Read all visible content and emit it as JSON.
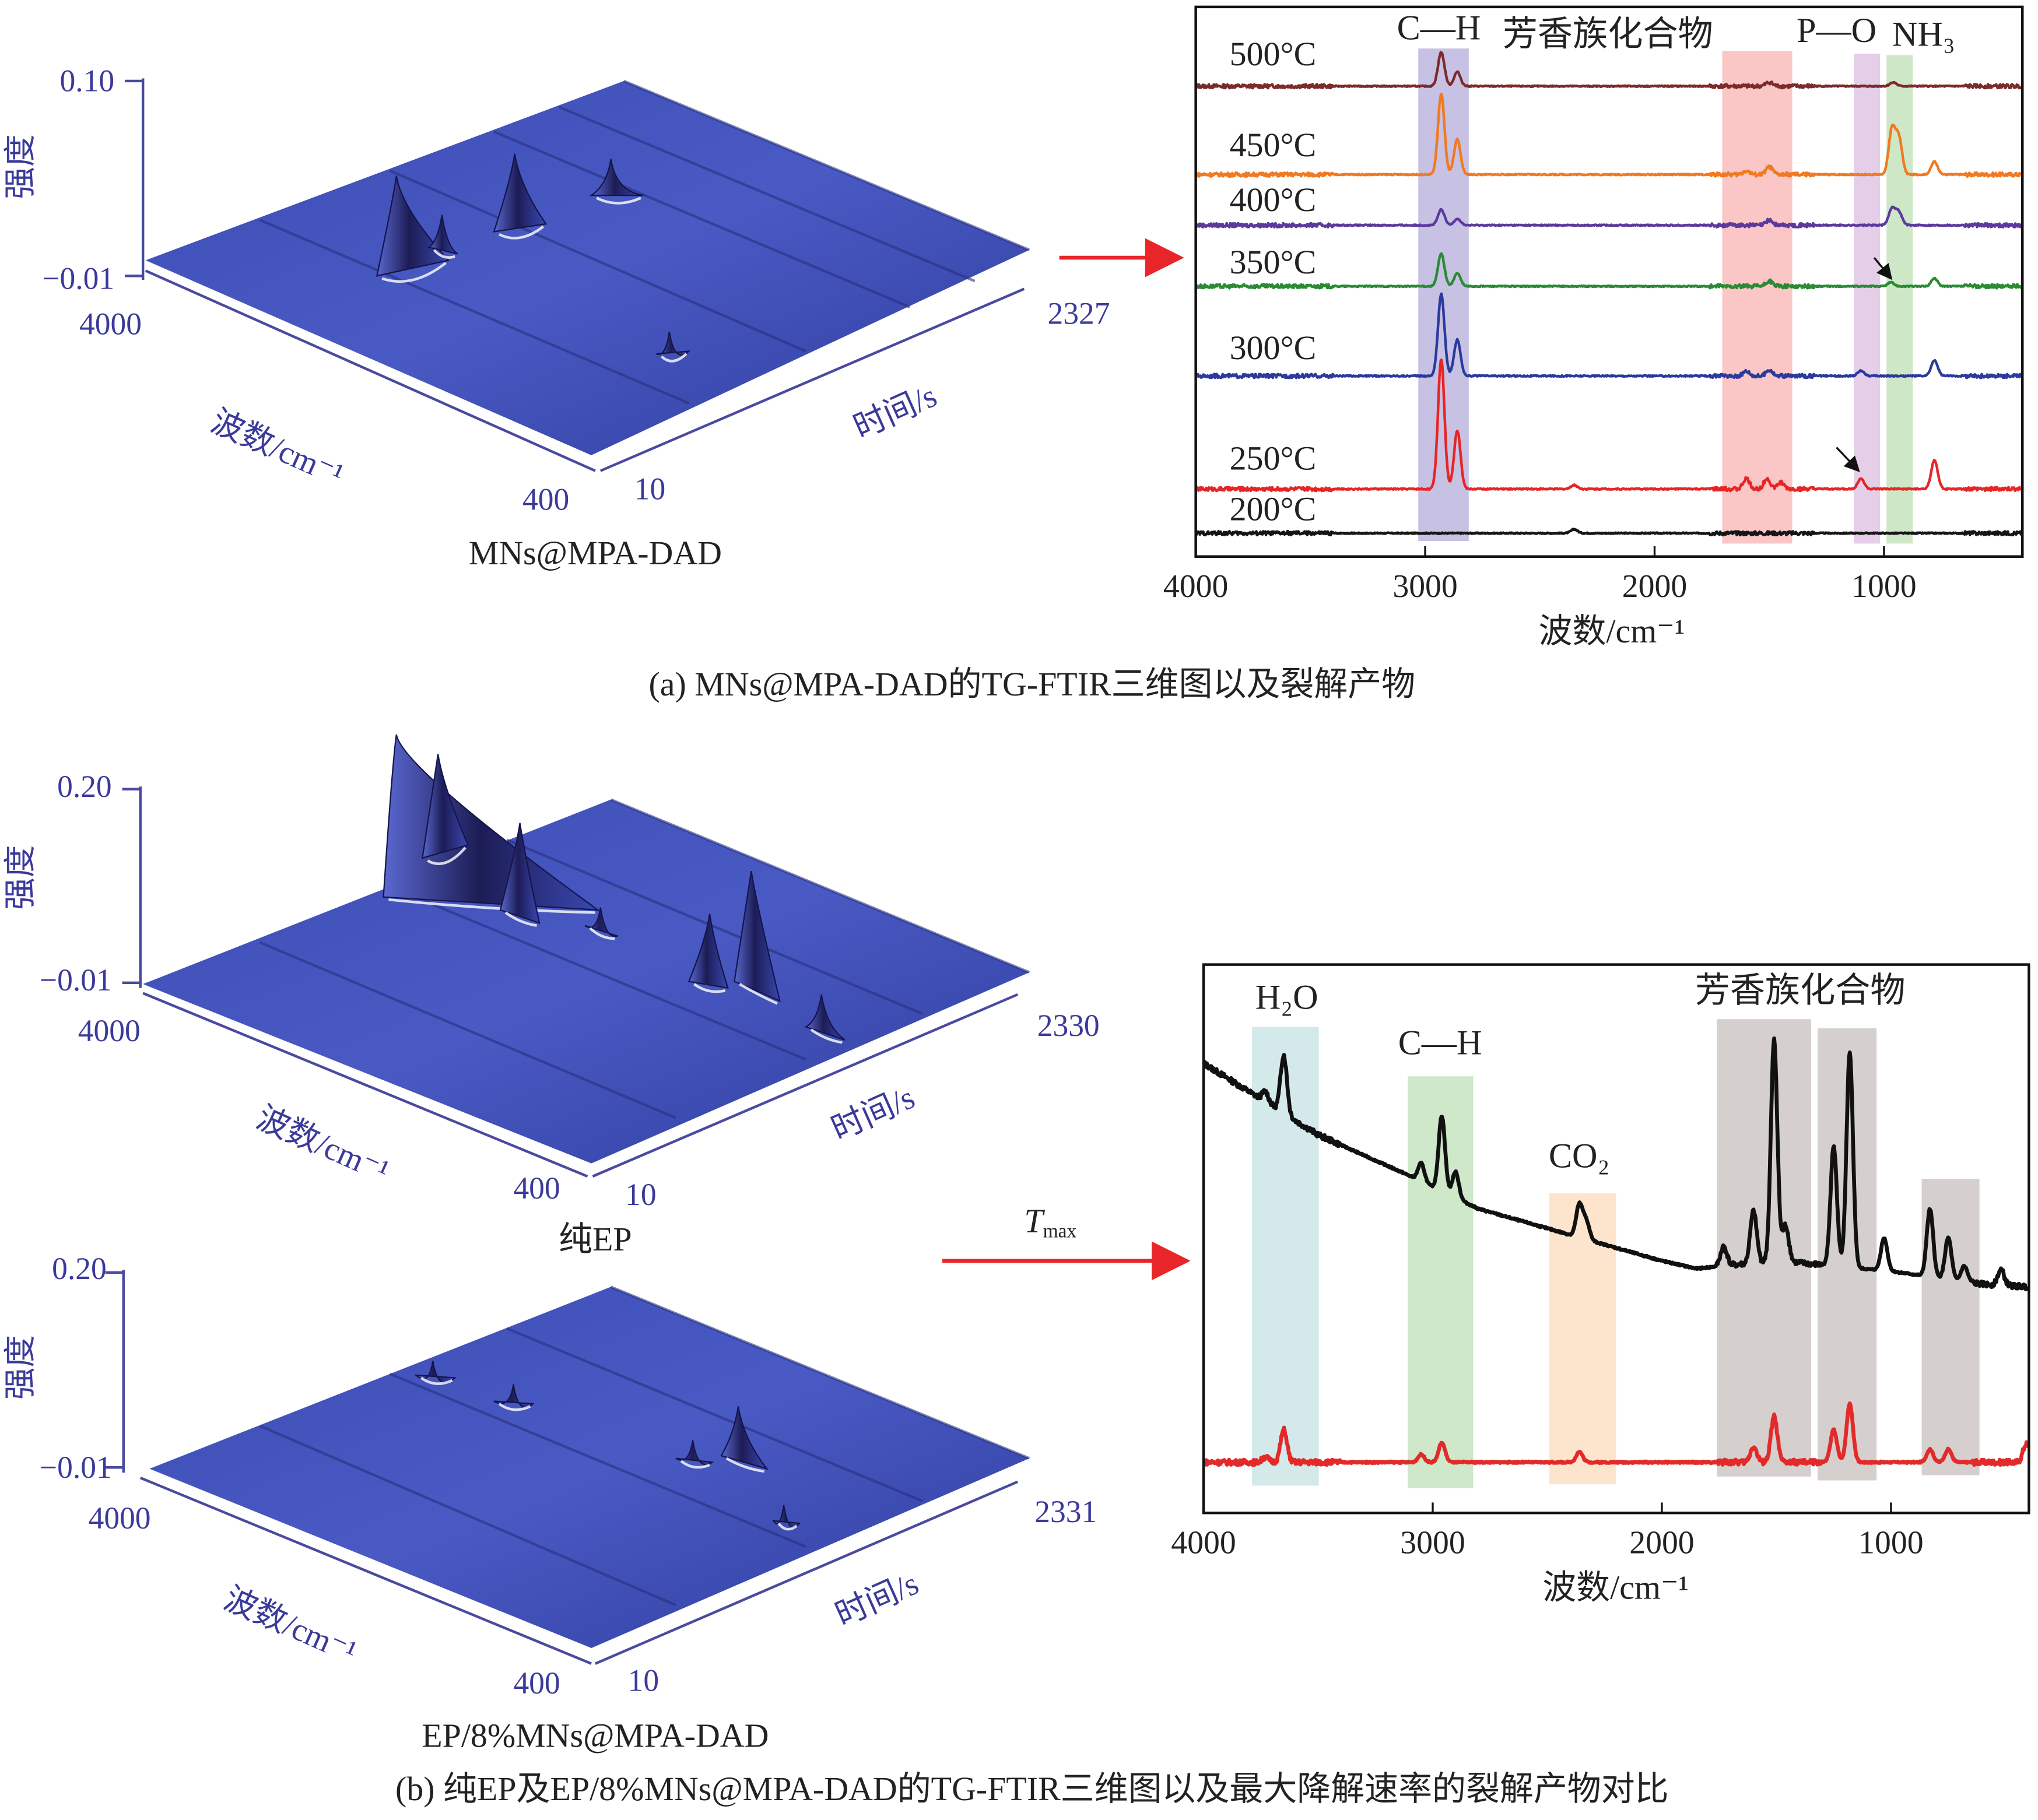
{
  "figure": {
    "caption_a": "(a) MNs@MPA-DAD的TG-FTIR三维图以及裂解产物",
    "caption_b": "(b) 纯EP及EP/8%MNs@MPA-DAD的TG-FTIR三维图以及最大降解速率的裂解产物对比",
    "tmax_t": "T",
    "tmax_sub": "max",
    "arrow_color": "#e8262a",
    "surface_color": "#4454b8"
  },
  "chart_data": [
    {
      "type": "surface3d",
      "title": "MNs@MPA-DAD",
      "zlabel": "强度",
      "xlabel": "波数/cm⁻¹",
      "ylabel": "时间/s",
      "zlim": [
        -0.01,
        0.1
      ],
      "xlim": [
        4000,
        400
      ],
      "ylim": [
        10,
        2327
      ],
      "z_ticks": [
        "0.10",
        "−0.01"
      ],
      "x_ticks": [
        "4000",
        "400"
      ],
      "y_ticks": [
        "10",
        "2327"
      ]
    },
    {
      "type": "line",
      "xlabel": "波数/cm⁻¹",
      "xlim": [
        4000,
        400
      ],
      "x_ticks": [
        4000,
        3000,
        2000,
        1000
      ],
      "x_tick_labels": [
        "4000",
        "3000",
        "2000",
        "1000"
      ],
      "bands": [
        {
          "label": "C—H",
          "range": [
            3030,
            2810
          ],
          "color": "#bdb6de"
        },
        {
          "label": "芳香族化合物",
          "range": [
            1705,
            1400
          ],
          "color": "#f9bcbc"
        },
        {
          "label": "P—O",
          "range": [
            1131,
            1017
          ],
          "color": "#e0c6e4"
        },
        {
          "label": "NH₃",
          "range": [
            989,
            875
          ],
          "color": "#c6e4bd"
        }
      ],
      "series": [
        {
          "name": "500°C",
          "color": "#7a2b2b",
          "peaks": [
            [
              2930,
              26
            ],
            [
              2860,
              11
            ],
            [
              1500,
              3
            ],
            [
              960,
              3
            ]
          ]
        },
        {
          "name": "450°C",
          "color": "#f07a22",
          "peaks": [
            [
              2930,
              62
            ],
            [
              2860,
              27
            ],
            [
              1500,
              6
            ],
            [
              1600,
              3
            ],
            [
              965,
              35
            ],
            [
              935,
              28
            ],
            [
              780,
              10
            ]
          ]
        },
        {
          "name": "400°C",
          "color": "#5b3a9c",
          "peaks": [
            [
              2930,
              12
            ],
            [
              2860,
              5
            ],
            [
              1500,
              4
            ],
            [
              965,
              13
            ],
            [
              935,
              10
            ]
          ]
        },
        {
          "name": "350°C",
          "color": "#2b8a35",
          "peaks": [
            [
              2930,
              25
            ],
            [
              2860,
              10
            ],
            [
              1500,
              4
            ],
            [
              780,
              6
            ],
            [
              970,
              3
            ]
          ]
        },
        {
          "name": "300°C",
          "color": "#2b3a9c",
          "peaks": [
            [
              2930,
              63
            ],
            [
              2860,
              28
            ],
            [
              1500,
              5
            ],
            [
              1600,
              4
            ],
            [
              1100,
              4
            ],
            [
              780,
              12
            ]
          ]
        },
        {
          "name": "250°C",
          "color": "#e62626",
          "peaks": [
            [
              2930,
              100
            ],
            [
              2860,
              45
            ],
            [
              2350,
              3
            ],
            [
              1600,
              8
            ],
            [
              1510,
              8
            ],
            [
              1450,
              5
            ],
            [
              1100,
              8
            ],
            [
              780,
              22
            ]
          ]
        },
        {
          "name": "200°C",
          "color": "#151515",
          "peaks": [
            [
              2350,
              3
            ]
          ]
        }
      ]
    },
    {
      "type": "surface3d",
      "title": "纯EP",
      "zlabel": "强度",
      "xlabel": "波数/cm⁻¹",
      "ylabel": "时间/s",
      "zlim": [
        -0.01,
        0.2
      ],
      "xlim": [
        4000,
        400
      ],
      "ylim": [
        10,
        2330
      ],
      "z_ticks": [
        "0.20",
        "−0.01"
      ],
      "x_ticks": [
        "4000",
        "400"
      ],
      "y_ticks": [
        "10",
        "2330"
      ]
    },
    {
      "type": "surface3d",
      "title": "EP/8%MNs@MPA-DAD",
      "zlabel": "强度",
      "xlabel": "波数/cm⁻¹",
      "ylabel": "时间/s",
      "zlim": [
        -0.01,
        0.2
      ],
      "xlim": [
        4000,
        400
      ],
      "ylim": [
        10,
        2331
      ],
      "z_ticks": [
        "0.20",
        "−0.01"
      ],
      "x_ticks": [
        "4000",
        "400"
      ],
      "y_ticks": [
        "10",
        "2331"
      ]
    },
    {
      "type": "line",
      "xlabel": "波数/cm⁻¹",
      "xlim": [
        4000,
        400
      ],
      "x_ticks": [
        4000,
        3000,
        2000,
        1000
      ],
      "x_tick_labels": [
        "4000",
        "3000",
        "2000",
        "1000"
      ],
      "bands": [
        {
          "label": "H₂O",
          "range": [
            3789,
            3497
          ],
          "color": "#cde6e6"
        },
        {
          "label": "C—H",
          "range": [
            3109,
            2823
          ],
          "color": "#c6e4c0"
        },
        {
          "label": "CO₂",
          "range": [
            2491,
            2200
          ],
          "color": "#fde0c4"
        },
        {
          "label": "芳香族化合物",
          "range": [
            1760,
            1349
          ],
          "color": "#cec8c6"
        },
        {
          "label": "",
          "range": [
            1320,
            1063
          ],
          "color": "#cec8c6"
        },
        {
          "label": "",
          "range": [
            866,
            614
          ],
          "color": "#cec8c6"
        }
      ],
      "series": [
        {
          "name": "",
          "color": "#111111",
          "baseline": [
            [
              4000,
              0
            ],
            [
              3800,
              -22
            ],
            [
              3500,
              -55
            ],
            [
              3120,
              -85
            ],
            [
              2800,
              -112
            ],
            [
              2400,
              -132
            ],
            [
              2000,
              -152
            ],
            [
              1850,
              -158
            ],
            [
              1500,
              -152
            ],
            [
              1000,
              -160
            ],
            [
              600,
              -170
            ],
            [
              400,
              -172
            ]
          ],
          "peaks": [
            [
              3730,
              8
            ],
            [
              3650,
              45
            ],
            [
              3050,
              14
            ],
            [
              2960,
              58
            ],
            [
              2900,
              20
            ],
            [
              2360,
              25
            ],
            [
              2330,
              14
            ],
            [
              1730,
              15
            ],
            [
              1600,
              40
            ],
            [
              1510,
              170
            ],
            [
              1460,
              28
            ],
            [
              1250,
              92
            ],
            [
              1180,
              165
            ],
            [
              1030,
              25
            ],
            [
              830,
              52
            ],
            [
              750,
              32
            ],
            [
              680,
              12
            ],
            [
              520,
              12
            ]
          ]
        },
        {
          "name": "",
          "color": "#e32a2a",
          "peaks": [
            [
              3730,
              4
            ],
            [
              3650,
              25
            ],
            [
              3050,
              6
            ],
            [
              2960,
              15
            ],
            [
              2360,
              8
            ],
            [
              1600,
              12
            ],
            [
              1510,
              35
            ],
            [
              1250,
              25
            ],
            [
              1180,
              45
            ],
            [
              830,
              10
            ],
            [
              750,
              10
            ],
            [
              410,
              14
            ]
          ]
        }
      ]
    }
  ]
}
